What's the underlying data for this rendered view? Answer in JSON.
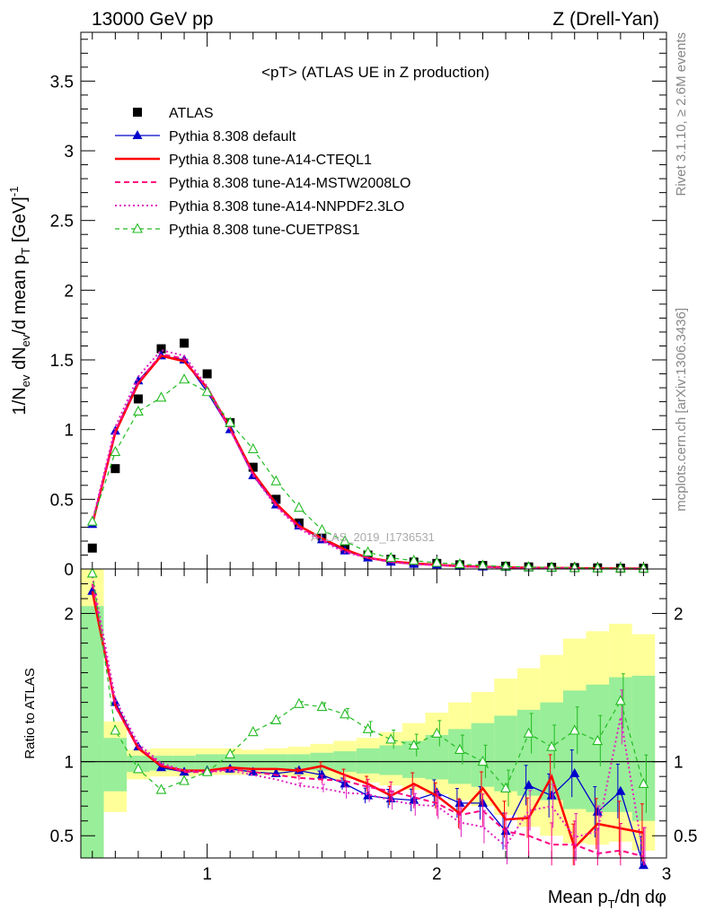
{
  "header": {
    "left": "13000 GeV pp",
    "right": "Z (Drell-Yan)"
  },
  "side_labels": {
    "rivet": "Rivet 3.1.10, ≥ 2.6M events",
    "mcplots": "mcplots.cern.ch [arXiv:1306.3436]"
  },
  "chart_data": [
    {
      "type": "scatter",
      "panel": "main",
      "title": "<pT> (ATLAS UE in Z production)",
      "ylabel": "1/N_ev dN_ev/d mean p_T [GeV]^-1",
      "xlim": [
        0.45,
        3.0
      ],
      "ylim": [
        0,
        3.85
      ],
      "yticks": [
        "0",
        "0.5",
        "1",
        "1.5",
        "2",
        "2.5",
        "3",
        "3.5"
      ],
      "watermark": "ATLAS_2019_I1736531",
      "x": [
        0.5,
        0.6,
        0.7,
        0.8,
        0.9,
        1.0,
        1.1,
        1.2,
        1.3,
        1.4,
        1.5,
        1.6,
        1.7,
        1.8,
        1.9,
        2.0,
        2.1,
        2.2,
        2.3,
        2.4,
        2.5,
        2.6,
        2.7,
        2.8,
        2.9
      ],
      "series": [
        {
          "name": "ATLAS",
          "color": "#000000",
          "style": "data",
          "values": [
            0.15,
            0.72,
            1.22,
            1.58,
            1.62,
            1.4,
            1.05,
            0.73,
            0.5,
            0.33,
            0.23,
            0.15,
            0.1,
            0.07,
            0.05,
            0.04,
            0.03,
            0.025,
            0.02,
            0.015,
            0.012,
            0.01,
            0.008,
            0.006,
            0.005
          ]
        },
        {
          "name": "Pythia 8.308 default",
          "color": "#0000cc",
          "style": "blue-tri",
          "values": [
            0.32,
            0.99,
            1.35,
            1.53,
            1.5,
            1.27,
            1.0,
            0.67,
            0.46,
            0.31,
            0.21,
            0.13,
            0.08,
            0.05,
            0.035,
            0.03,
            0.02,
            0.015,
            0.012,
            0.01,
            0.008,
            0.007,
            0.006,
            0.005,
            0.004
          ]
        },
        {
          "name": "Pythia 8.308 tune-A14-CTEQL1",
          "color": "#ff0000",
          "style": "red-solid",
          "values": [
            0.32,
            0.98,
            1.33,
            1.53,
            1.49,
            1.3,
            1.01,
            0.69,
            0.47,
            0.31,
            0.22,
            0.14,
            0.08,
            0.055,
            0.04,
            0.03,
            0.02,
            0.016,
            0.012,
            0.009,
            0.008,
            0.006,
            0.005,
            0.004,
            0.003
          ]
        },
        {
          "name": "Pythia 8.308 tune-A14-MSTW2008LO",
          "color": "#ff0080",
          "style": "pink-dash",
          "values": [
            0.33,
            0.99,
            1.34,
            1.54,
            1.51,
            1.29,
            1.0,
            0.68,
            0.46,
            0.3,
            0.21,
            0.13,
            0.08,
            0.05,
            0.035,
            0.028,
            0.02,
            0.015,
            0.011,
            0.008,
            0.006,
            0.005,
            0.004,
            0.003,
            0.002
          ]
        },
        {
          "name": "Pythia 8.308 tune-A14-NNPDF2.3LO",
          "color": "#e020c0",
          "style": "magenta-dot",
          "values": [
            0.34,
            1.02,
            1.38,
            1.57,
            1.53,
            1.31,
            1.0,
            0.67,
            0.45,
            0.29,
            0.2,
            0.12,
            0.08,
            0.05,
            0.035,
            0.027,
            0.018,
            0.013,
            0.009,
            0.007,
            0.006,
            0.004,
            0.003,
            0.003,
            0.002
          ]
        },
        {
          "name": "Pythia 8.308 tune-CUETP8S1",
          "color": "#22bb22",
          "style": "green-open",
          "values": [
            0.34,
            0.84,
            1.13,
            1.23,
            1.36,
            1.27,
            1.05,
            0.86,
            0.63,
            0.44,
            0.28,
            0.2,
            0.12,
            0.08,
            0.06,
            0.045,
            0.035,
            0.025,
            0.018,
            0.014,
            0.011,
            0.008,
            0.006,
            0.005,
            0.004
          ]
        }
      ]
    },
    {
      "type": "line",
      "panel": "ratio",
      "ylabel": "Ratio to ATLAS",
      "xlabel": "Mean p_T/dη dφ",
      "xlim": [
        0.45,
        3.0
      ],
      "ylim": [
        0.35,
        2.3
      ],
      "yticks": [
        "0.5",
        "1",
        "2"
      ],
      "xticks": [
        "1",
        "2",
        "3"
      ],
      "x": [
        0.5,
        0.6,
        0.7,
        0.8,
        0.9,
        1.0,
        1.1,
        1.2,
        1.3,
        1.4,
        1.5,
        1.6,
        1.7,
        1.8,
        1.9,
        2.0,
        2.1,
        2.2,
        2.3,
        2.4,
        2.5,
        2.6,
        2.7,
        2.8,
        2.9
      ],
      "band_edges": [
        0.45,
        0.55,
        0.65,
        0.75,
        0.85,
        0.95,
        1.05,
        1.15,
        1.25,
        1.35,
        1.45,
        1.55,
        1.65,
        1.75,
        1.85,
        1.95,
        2.05,
        2.15,
        2.25,
        2.35,
        2.45,
        2.55,
        2.65,
        2.75,
        2.85,
        2.95
      ],
      "band_yellow": [
        [
          0.35,
          2.3
        ],
        [
          0.66,
          1.27
        ],
        [
          0.88,
          1.08
        ],
        [
          0.9,
          1.09
        ],
        [
          0.9,
          1.09
        ],
        [
          0.91,
          1.09
        ],
        [
          0.91,
          1.09
        ],
        [
          0.91,
          1.08
        ],
        [
          0.91,
          1.09
        ],
        [
          0.9,
          1.1
        ],
        [
          0.89,
          1.12
        ],
        [
          0.88,
          1.14
        ],
        [
          0.86,
          1.16
        ],
        [
          0.84,
          1.2
        ],
        [
          0.81,
          1.26
        ],
        [
          0.78,
          1.33
        ],
        [
          0.74,
          1.4
        ],
        [
          0.7,
          1.47
        ],
        [
          0.64,
          1.56
        ],
        [
          0.56,
          1.63
        ],
        [
          0.5,
          1.72
        ],
        [
          0.45,
          1.83
        ],
        [
          0.44,
          1.88
        ],
        [
          0.46,
          1.93
        ],
        [
          0.4,
          1.86
        ]
      ],
      "band_green": [
        [
          0.35,
          2.05
        ],
        [
          0.8,
          1.16
        ],
        [
          0.93,
          1.04
        ],
        [
          0.94,
          1.04
        ],
        [
          0.94,
          1.04
        ],
        [
          0.94,
          1.05
        ],
        [
          0.95,
          1.05
        ],
        [
          0.94,
          1.05
        ],
        [
          0.94,
          1.05
        ],
        [
          0.94,
          1.05
        ],
        [
          0.94,
          1.06
        ],
        [
          0.93,
          1.07
        ],
        [
          0.92,
          1.09
        ],
        [
          0.91,
          1.11
        ],
        [
          0.89,
          1.14
        ],
        [
          0.88,
          1.18
        ],
        [
          0.85,
          1.22
        ],
        [
          0.83,
          1.26
        ],
        [
          0.8,
          1.31
        ],
        [
          0.77,
          1.35
        ],
        [
          0.74,
          1.4
        ],
        [
          0.68,
          1.48
        ],
        [
          0.66,
          1.52
        ],
        [
          0.66,
          1.57
        ],
        [
          0.6,
          1.58
        ]
      ],
      "series": [
        {
          "name": "Pythia 8.308 default",
          "color": "#0000cc",
          "style": "blue-tri",
          "values": [
            2.15,
            1.4,
            1.1,
            0.96,
            0.93,
            0.94,
            0.95,
            0.93,
            0.92,
            0.94,
            0.91,
            0.85,
            0.77,
            0.75,
            0.74,
            0.79,
            0.72,
            0.72,
            0.53,
            0.84,
            0.77,
            0.92,
            0.66,
            0.8,
            0.3
          ]
        },
        {
          "name": "Pythia 8.308 tune-A14-CTEQL1",
          "color": "#ff0000",
          "style": "red-solid",
          "values": [
            2.15,
            1.38,
            1.09,
            0.97,
            0.94,
            0.94,
            0.96,
            0.95,
            0.95,
            0.94,
            0.97,
            0.91,
            0.85,
            0.77,
            0.85,
            0.77,
            0.65,
            0.82,
            0.61,
            0.62,
            0.9,
            0.42,
            0.58,
            0.55,
            0.52
          ]
        },
        {
          "name": "Pythia 8.308 tune-A14-MSTW2008LO",
          "color": "#ff0080",
          "style": "pink-dash",
          "values": [
            2.2,
            1.37,
            1.1,
            0.98,
            0.93,
            0.93,
            0.95,
            0.93,
            0.91,
            0.89,
            0.88,
            0.87,
            0.83,
            0.8,
            0.76,
            0.72,
            0.64,
            0.67,
            0.53,
            0.5,
            0.44,
            0.44,
            0.38,
            0.4,
            0.36
          ]
        },
        {
          "name": "Pythia 8.308 tune-A14-NNPDF2.3LO",
          "color": "#e020c0",
          "style": "magenta-dot",
          "values": [
            2.25,
            1.42,
            1.12,
            0.99,
            0.94,
            0.93,
            0.94,
            0.91,
            0.88,
            0.84,
            0.82,
            0.79,
            0.78,
            0.74,
            0.71,
            0.7,
            0.59,
            0.56,
            0.43,
            0.67,
            0.7,
            0.49,
            0.53,
            1.3,
            0.36
          ]
        },
        {
          "name": "Pythia 8.308 tune-CUETP8S1",
          "color": "#22bb22",
          "style": "green-open",
          "values": [
            2.27,
            1.21,
            0.95,
            0.81,
            0.87,
            0.93,
            1.05,
            1.2,
            1.28,
            1.39,
            1.37,
            1.32,
            1.22,
            1.15,
            1.11,
            1.19,
            1.08,
            1.0,
            0.82,
            1.19,
            1.1,
            1.21,
            1.14,
            1.41,
            0.85
          ]
        }
      ]
    }
  ]
}
